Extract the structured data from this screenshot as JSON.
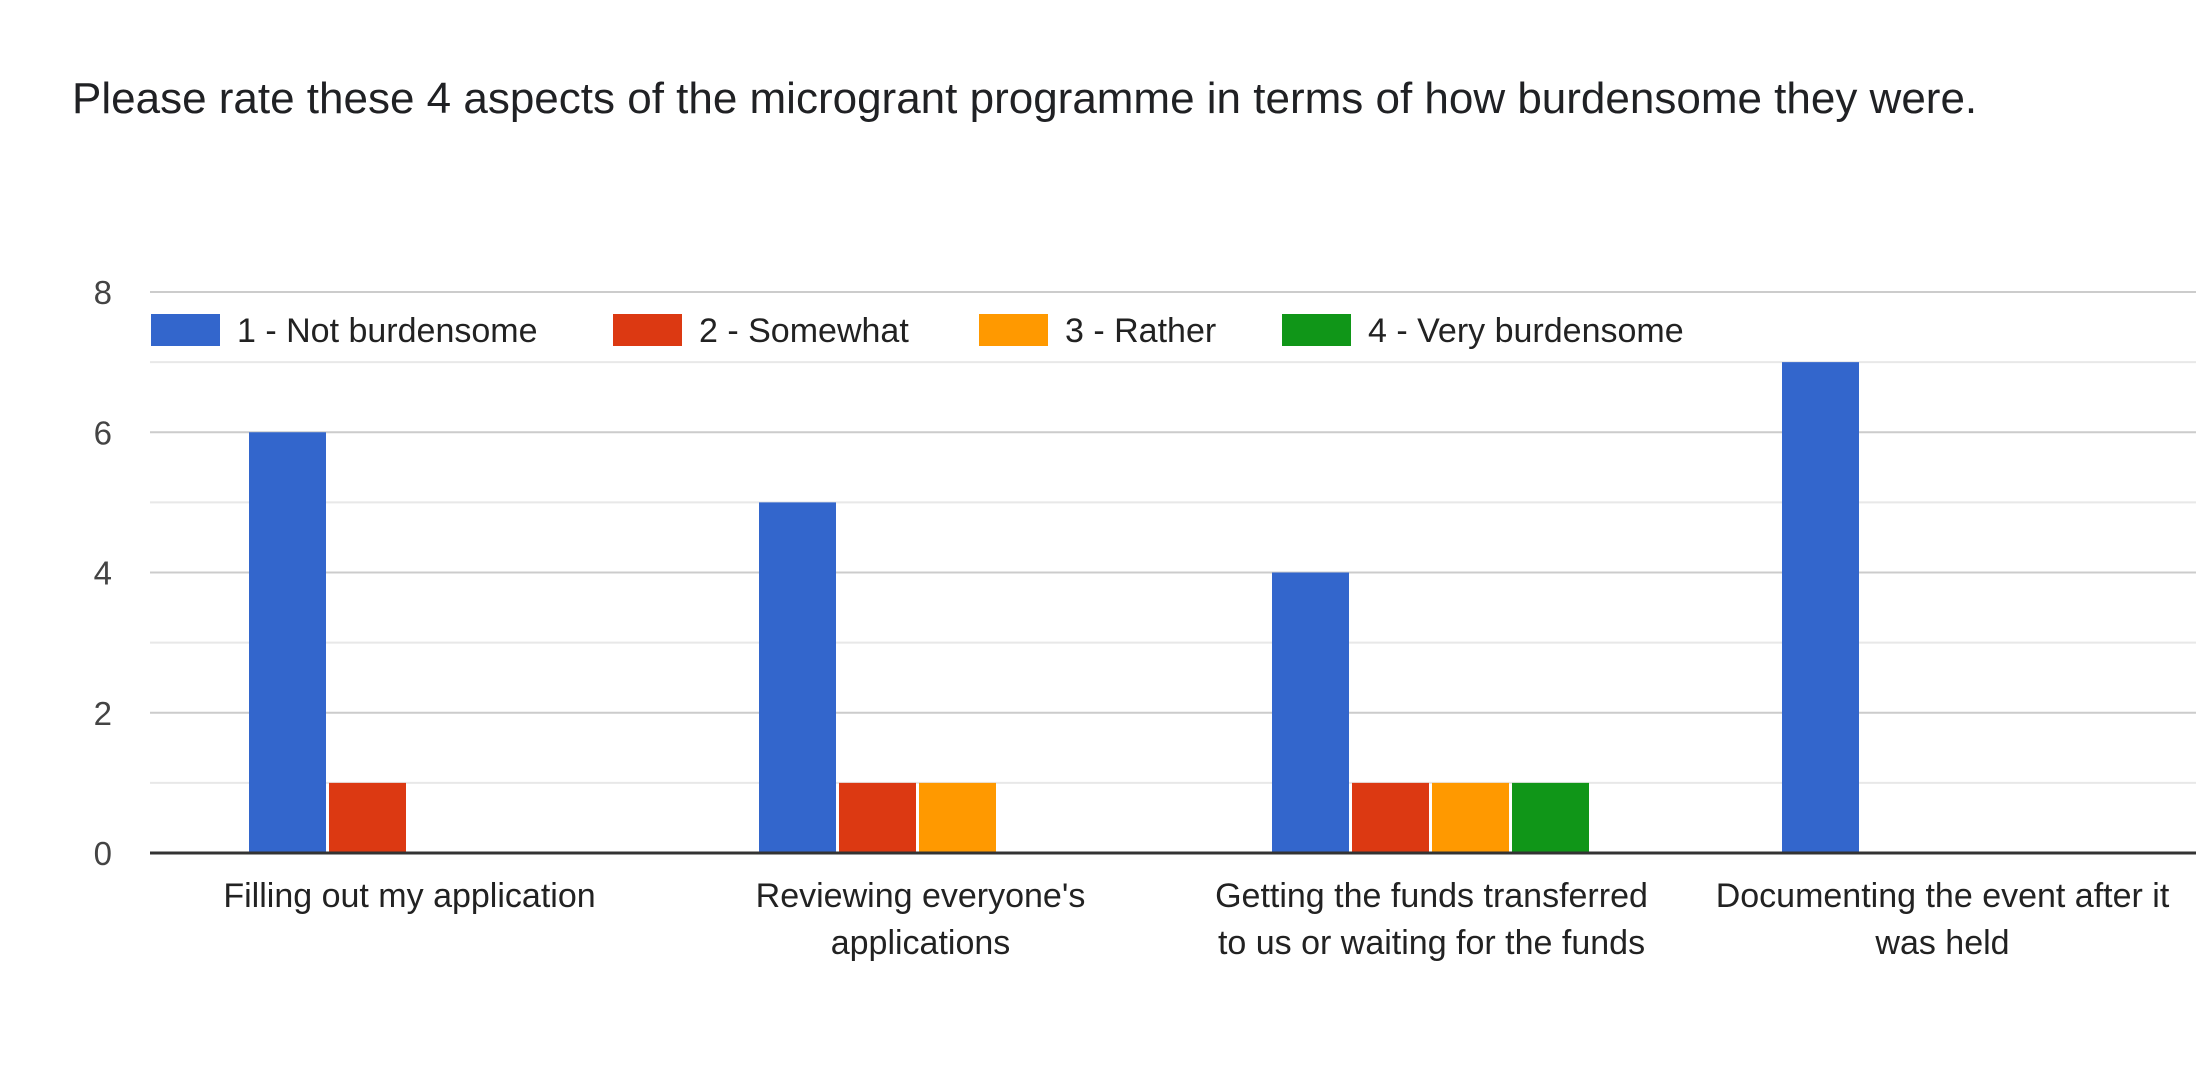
{
  "chart_data": {
    "type": "bar",
    "title": "Please rate these 4 aspects of the microgrant programme in terms of how burdensome they were.",
    "categories": [
      [
        "Filling out my application"
      ],
      [
        "Reviewing everyone's",
        "applications"
      ],
      [
        "Getting the funds transferred",
        "to us or waiting for the funds"
      ],
      [
        "Documenting the event after it",
        "was held"
      ]
    ],
    "series": [
      {
        "name": "1 - Not burdensome",
        "color": "#3366cc",
        "values": [
          6,
          5,
          4,
          7
        ]
      },
      {
        "name": "2 - Somewhat",
        "color": "#dc3912",
        "values": [
          1,
          1,
          1,
          0
        ]
      },
      {
        "name": "3 - Rather",
        "color": "#ff9900",
        "values": [
          0,
          1,
          1,
          0
        ]
      },
      {
        "name": "4 - Very burdensome",
        "color": "#109618",
        "values": [
          0,
          0,
          1,
          0
        ]
      }
    ],
    "ylim": [
      0,
      8
    ],
    "yticks": [
      "0",
      "2",
      "4",
      "6",
      "8"
    ],
    "grid": true,
    "legend_position": "top-left",
    "xlabel": "",
    "ylabel": ""
  }
}
